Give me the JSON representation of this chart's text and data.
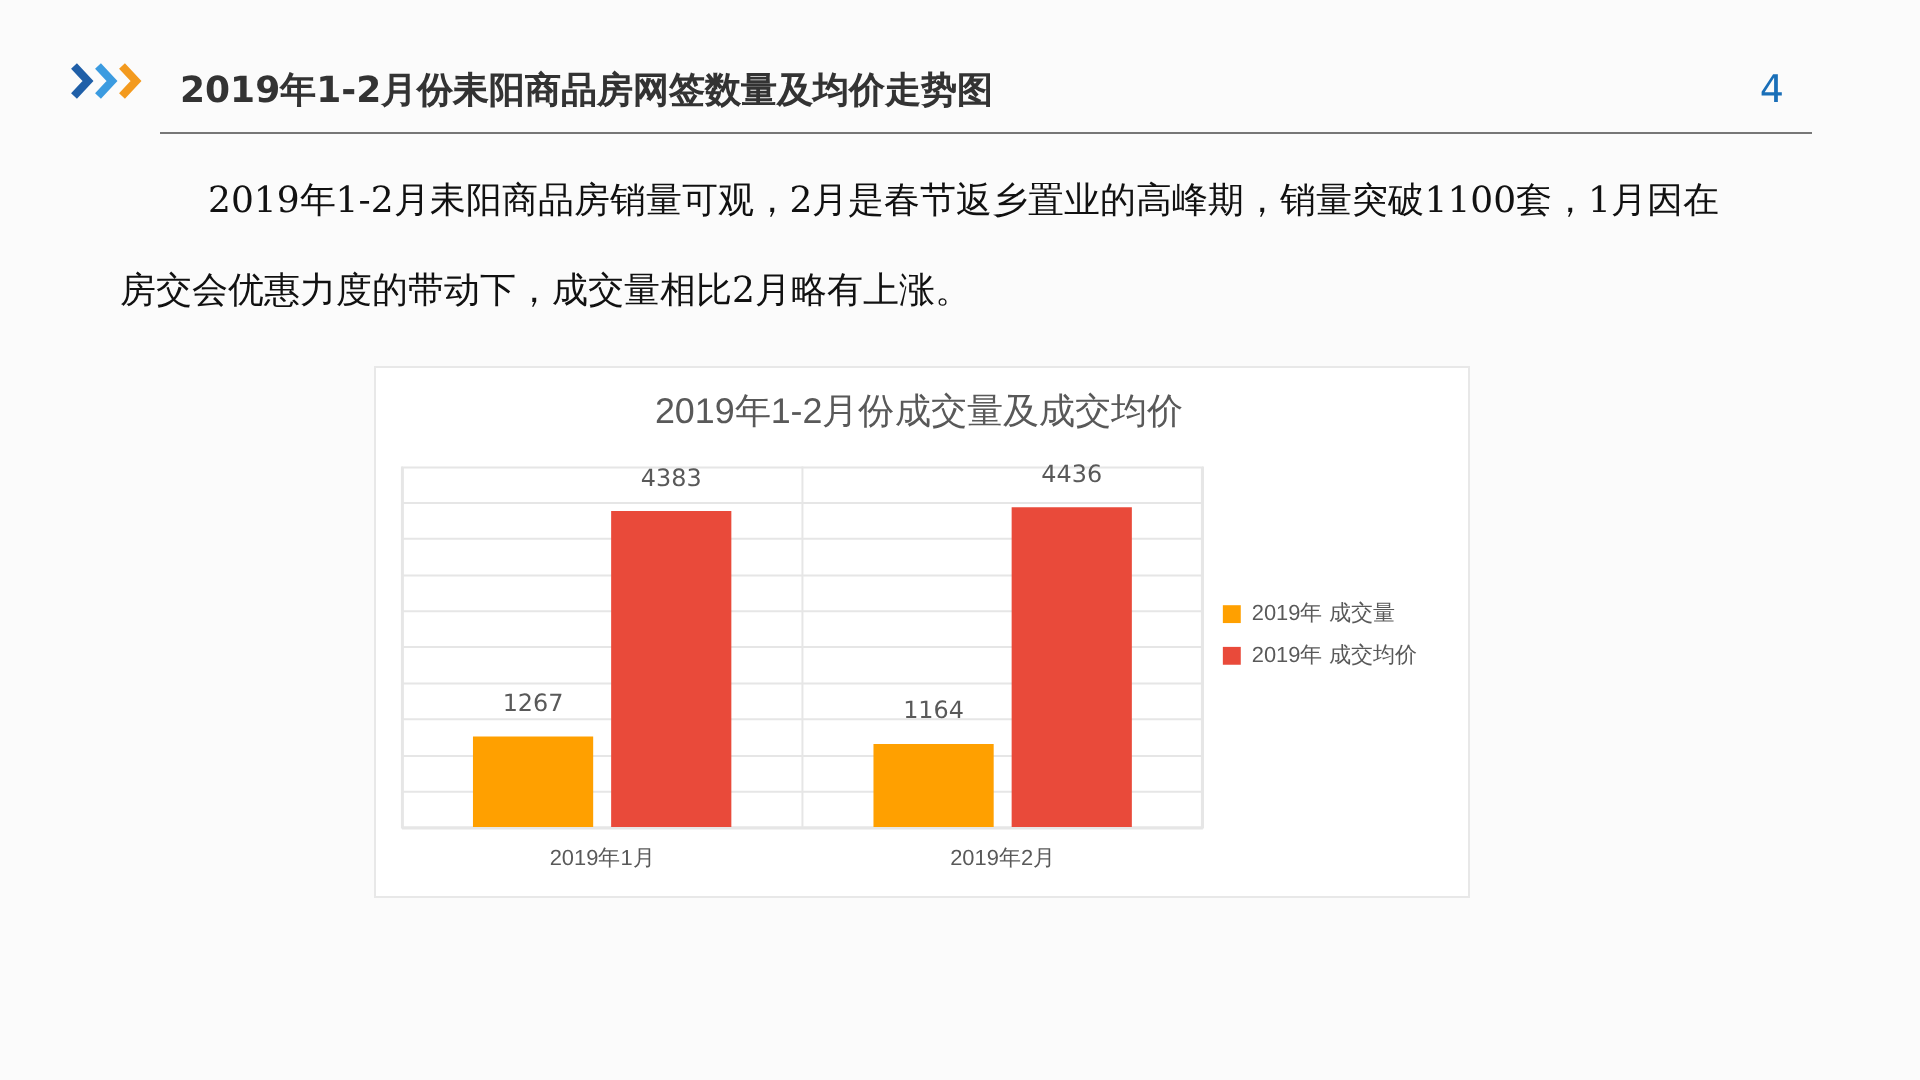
{
  "chart_data": {
    "type": "bar",
    "title": "2019年1-2月份耒阳商品房网签数量及均价走势图",
    "subtitle": "2019年1-2月份成交量及成交均价",
    "annotations": [
      "2019年1-2月耒阳商品房销量可观，2月是春节返乡置业的高峰期，销量突破1100套，1月因在房交会优惠力度的带动下，成交量相比2月略有上涨。",
      "4"
    ],
    "categories": [
      "2019年1月",
      "2019年2月"
    ],
    "series": [
      {
        "name": "2019年 成交量",
        "color": "#ffa000",
        "values": [
          1267,
          1164
        ]
      },
      {
        "name": "2019年 成交均价",
        "color": "#e94a3a",
        "values": [
          4383,
          4436
        ]
      }
    ],
    "ylim": [
      0,
      5000
    ],
    "yticks": [
      {
        "value": 0,
        "label": null
      },
      {
        "value": 500,
        "label": null
      },
      {
        "value": 1000,
        "label": null
      },
      {
        "value": 1500,
        "label": null
      },
      {
        "value": 2000,
        "label": null
      },
      {
        "value": 2500,
        "label": null
      },
      {
        "value": 3000,
        "label": null
      },
      {
        "value": 3500,
        "label": null
      },
      {
        "value": 4000,
        "label": null
      },
      {
        "value": 4500,
        "label": null
      }
    ],
    "grid": true,
    "legend": "right",
    "tick_labels": "x",
    "data_labels": true
  }
}
